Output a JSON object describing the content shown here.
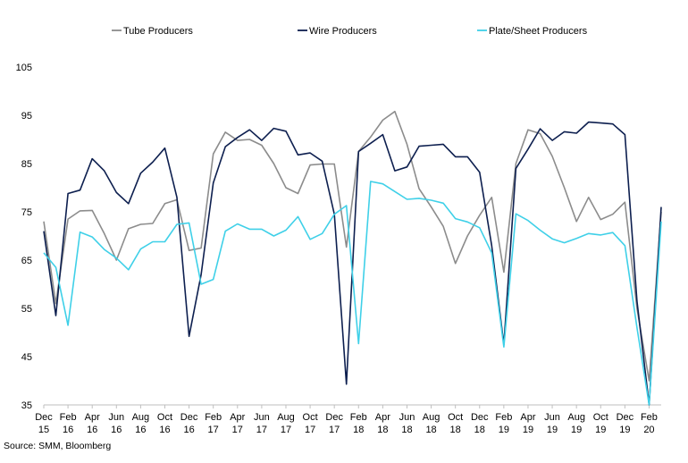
{
  "chart_data": {
    "type": "line",
    "title": "",
    "xlabel": "",
    "ylabel": "",
    "ylim": [
      35,
      105
    ],
    "yticks": [
      35,
      45,
      55,
      65,
      75,
      85,
      95,
      105
    ],
    "grid": false,
    "legend_position": "top",
    "x_tick_labels": [
      [
        "Dec",
        "15"
      ],
      [
        "Feb",
        "16"
      ],
      [
        "Apr",
        "16"
      ],
      [
        "Jun",
        "16"
      ],
      [
        "Aug",
        "16"
      ],
      [
        "Oct",
        "16"
      ],
      [
        "Dec",
        "16"
      ],
      [
        "Feb",
        "17"
      ],
      [
        "Apr",
        "17"
      ],
      [
        "Jun",
        "17"
      ],
      [
        "Aug",
        "17"
      ],
      [
        "Oct",
        "17"
      ],
      [
        "Dec",
        "17"
      ],
      [
        "Feb",
        "18"
      ],
      [
        "Apr",
        "18"
      ],
      [
        "Jun",
        "18"
      ],
      [
        "Aug",
        "18"
      ],
      [
        "Oct",
        "18"
      ],
      [
        "Dec",
        "18"
      ],
      [
        "Feb",
        "19"
      ],
      [
        "Apr",
        "19"
      ],
      [
        "Jun",
        "19"
      ],
      [
        "Aug",
        "19"
      ],
      [
        "Oct",
        "19"
      ],
      [
        "Dec",
        "19"
      ],
      [
        "Feb",
        "20"
      ]
    ],
    "series": [
      {
        "name": "Tube Producers",
        "color": "#8c8c8c",
        "values": [
          73.0,
          56.0,
          73.5,
          75.2,
          75.3,
          70.5,
          65.0,
          71.5,
          72.4,
          72.6,
          76.7,
          77.5,
          67.0,
          67.5,
          87.0,
          91.5,
          89.8,
          90.0,
          88.8,
          85.0,
          80.0,
          78.8,
          84.7,
          84.9,
          84.9,
          67.7,
          87.5,
          90.5,
          94.0,
          95.8,
          89.0,
          79.8,
          76.0,
          72.0,
          64.3,
          70.0,
          74.3,
          78.0,
          62.5,
          85.0,
          92.0,
          91.2,
          86.5,
          80.0,
          73.0,
          78.0,
          73.4,
          74.5,
          77.0,
          55.0,
          40.0,
          75.0
        ]
      },
      {
        "name": "Wire Producers",
        "color": "#0d1f4f",
        "values": [
          71.0,
          53.5,
          78.8,
          79.5,
          86.0,
          83.5,
          79.0,
          76.7,
          83.0,
          85.3,
          88.2,
          78.0,
          49.2,
          62.0,
          81.0,
          88.5,
          90.4,
          92.0,
          89.8,
          92.3,
          91.7,
          86.8,
          87.2,
          85.5,
          74.5,
          39.3,
          87.5,
          89.2,
          91.0,
          83.5,
          84.3,
          88.6,
          88.8,
          89.0,
          86.4,
          86.4,
          83.2,
          68.0,
          47.5,
          84.0,
          88.0,
          92.2,
          89.8,
          91.6,
          91.3,
          93.6,
          93.4,
          93.2,
          91.0,
          56.5,
          35.0,
          76.0
        ]
      },
      {
        "name": "Plate/Sheet Producers",
        "color": "#3fd0e8",
        "values": [
          66.5,
          63.5,
          51.5,
          70.8,
          69.8,
          67.2,
          65.4,
          63.0,
          67.3,
          68.8,
          68.8,
          72.4,
          72.7,
          60.0,
          61.0,
          71.0,
          72.5,
          71.4,
          71.4,
          70.0,
          71.2,
          74.0,
          69.3,
          70.5,
          74.5,
          76.3,
          47.7,
          81.3,
          80.8,
          79.2,
          77.6,
          77.8,
          77.4,
          76.8,
          73.6,
          72.9,
          71.7,
          66.5,
          47.0,
          74.6,
          73.2,
          71.2,
          69.4,
          68.6,
          69.5,
          70.5,
          70.2,
          70.7,
          68.0,
          51.0,
          35.0,
          73.0
        ]
      }
    ]
  },
  "source_text": "Source: SMM, Bloomberg"
}
